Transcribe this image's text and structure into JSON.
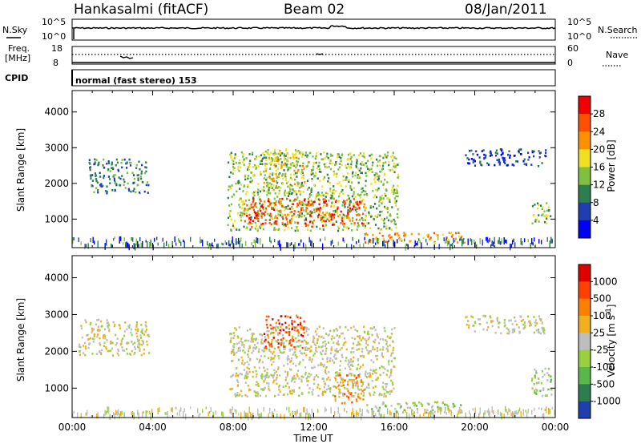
{
  "header": {
    "station": "Hankasalmi (fitACF)",
    "beam": "Beam 02",
    "date": "08/Jan/2011"
  },
  "strip_labels": {
    "n_sky": "N.Sky",
    "n_search": "N.Search",
    "freq": "Freq.",
    "freq_unit": "[MHz]",
    "nave": "Nave",
    "cpid": "CPID",
    "cpid_text": "normal (fast stereo) 153",
    "noise_left_ticks": [
      "10^5",
      "10^0"
    ],
    "noise_right_ticks": [
      "10^5",
      "10^0"
    ],
    "freq_left_ticks": [
      "18",
      "8"
    ],
    "freq_right_ticks": [
      "60",
      "0"
    ]
  },
  "chart_data": [
    {
      "type": "heatmap",
      "panel": "power",
      "ylabel": "Slant Range [km]",
      "ylim": [
        200,
        4600
      ],
      "yticks": [
        1000,
        2000,
        3000,
        4000
      ],
      "colorbar_label": "Power [dB]",
      "colorbar_ticks": [
        4,
        8,
        12,
        16,
        20,
        24,
        28
      ],
      "colorbar_colors": [
        "#0000ff",
        "#1f3fb0",
        "#2e7d4f",
        "#7fc040",
        "#f0e020",
        "#ff9000",
        "#ff5000",
        "#f00000"
      ],
      "xlim_hours": [
        0,
        24
      ],
      "regions": [
        {
          "t0": 0.8,
          "t1": 3.8,
          "r0": 1750,
          "r1": 2700,
          "level": 2
        },
        {
          "t0": 7.7,
          "t1": 16.2,
          "r0": 700,
          "r1": 2900,
          "level": 3
        },
        {
          "t0": 8.5,
          "t1": 14.5,
          "r0": 800,
          "r1": 1600,
          "level": 6
        },
        {
          "t0": 9.5,
          "t1": 11.5,
          "r0": 1800,
          "r1": 3000,
          "level": 4
        },
        {
          "t0": 14.5,
          "t1": 19.5,
          "r0": 350,
          "r1": 650,
          "level": 5
        },
        {
          "t0": 19.5,
          "t1": 23.5,
          "r0": 2500,
          "r1": 3000,
          "level": 1
        },
        {
          "t0": 22.8,
          "t1": 23.8,
          "r0": 900,
          "r1": 1500,
          "level": 3
        }
      ]
    },
    {
      "type": "heatmap",
      "panel": "velocity",
      "ylabel": "Slant Range [km]",
      "xlabel": "Time UT",
      "ylim": [
        200,
        4600
      ],
      "yticks": [
        1000,
        2000,
        3000,
        4000
      ],
      "colorbar_label": "Velocity [m s^-1]",
      "colorbar_ticks": [
        "1000",
        "500",
        "100",
        "25",
        "-25",
        "-100",
        "-500",
        "-1000"
      ],
      "colorbar_colors": [
        "#1f3fb0",
        "#2e7d4f",
        "#5ab84a",
        "#9ad040",
        "#bebebe",
        "#f0b020",
        "#ff8000",
        "#ff4000",
        "#e00000"
      ],
      "xlim_hours": [
        0,
        24
      ],
      "xticks": [
        "00:00",
        "04:00",
        "08:00",
        "12:00",
        "16:00",
        "20:00",
        "00:00"
      ],
      "regions": [
        {
          "t0": 0.3,
          "t1": 3.8,
          "r0": 1900,
          "r1": 2900,
          "level": 4
        },
        {
          "t0": 7.8,
          "t1": 16.0,
          "r0": 800,
          "r1": 2700,
          "level": 4
        },
        {
          "t0": 9.5,
          "t1": 11.5,
          "r0": 2100,
          "r1": 3000,
          "level": 7
        },
        {
          "t0": 13.0,
          "t1": 14.5,
          "r0": 600,
          "r1": 1400,
          "level": 6
        },
        {
          "t0": 14.5,
          "t1": 19.5,
          "r0": 350,
          "r1": 650,
          "level": 3
        },
        {
          "t0": 19.5,
          "t1": 23.5,
          "r0": 2500,
          "r1": 3000,
          "level": 4
        },
        {
          "t0": 22.8,
          "t1": 23.8,
          "r0": 800,
          "r1": 1600,
          "level": 3
        }
      ]
    }
  ]
}
